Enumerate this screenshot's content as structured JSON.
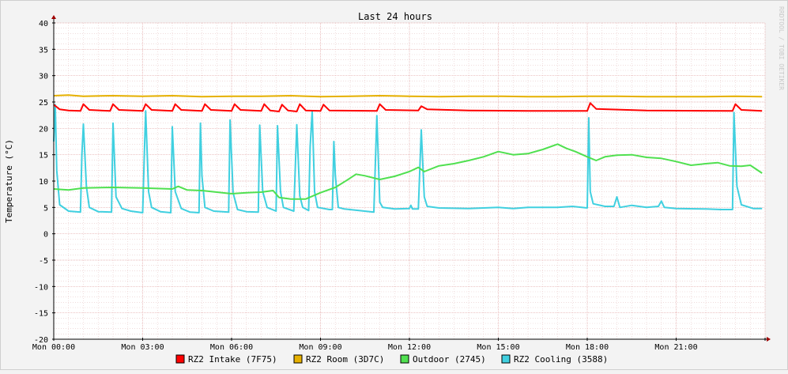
{
  "chart_data": {
    "type": "line",
    "title": "Last 24 hours",
    "ylabel": "Temperature (°C)",
    "watermark": "RRDTOOL / TOBI OETIKER",
    "ylim": [
      -20,
      40
    ],
    "yticks": [
      "40",
      "35",
      "30",
      "25",
      "20",
      "15",
      "10",
      "5",
      "0",
      "-5",
      "-10",
      "-15",
      "-20"
    ],
    "x_range_hours": [
      0,
      24
    ],
    "xticks": [
      "Mon 00:00",
      "Mon 03:00",
      "Mon 06:00",
      "Mon 09:00",
      "Mon 12:00",
      "Mon 15:00",
      "Mon 18:00",
      "Mon 21:00"
    ],
    "grid": true,
    "legend_position": "bottom",
    "series": [
      {
        "name": "RZ2 Intake (7F75)",
        "color": "#ff0000",
        "points": [
          [
            0,
            24.5
          ],
          [
            0.2,
            23.6
          ],
          [
            0.5,
            23.4
          ],
          [
            0.9,
            23.3
          ],
          [
            1.0,
            24.6
          ],
          [
            1.2,
            23.5
          ],
          [
            1.9,
            23.3
          ],
          [
            2.0,
            24.6
          ],
          [
            2.2,
            23.5
          ],
          [
            3.0,
            23.3
          ],
          [
            3.1,
            24.6
          ],
          [
            3.3,
            23.5
          ],
          [
            4.0,
            23.3
          ],
          [
            4.1,
            24.6
          ],
          [
            4.3,
            23.5
          ],
          [
            5.0,
            23.3
          ],
          [
            5.1,
            24.6
          ],
          [
            5.3,
            23.5
          ],
          [
            6.0,
            23.3
          ],
          [
            6.1,
            24.6
          ],
          [
            6.3,
            23.5
          ],
          [
            7.0,
            23.3
          ],
          [
            7.1,
            24.6
          ],
          [
            7.3,
            23.4
          ],
          [
            7.6,
            23.2
          ],
          [
            7.7,
            24.5
          ],
          [
            7.9,
            23.4
          ],
          [
            8.2,
            23.2
          ],
          [
            8.3,
            24.6
          ],
          [
            8.5,
            23.4
          ],
          [
            9.0,
            23.3
          ],
          [
            9.1,
            24.5
          ],
          [
            9.3,
            23.4
          ],
          [
            10.9,
            23.3
          ],
          [
            11.0,
            24.6
          ],
          [
            11.2,
            23.5
          ],
          [
            12.3,
            23.4
          ],
          [
            12.4,
            24.2
          ],
          [
            12.6,
            23.6
          ],
          [
            14.0,
            23.4
          ],
          [
            16.0,
            23.3
          ],
          [
            18.0,
            23.3
          ],
          [
            18.1,
            24.8
          ],
          [
            18.3,
            23.7
          ],
          [
            20.0,
            23.4
          ],
          [
            22.9,
            23.3
          ],
          [
            23.0,
            24.6
          ],
          [
            23.2,
            23.5
          ],
          [
            23.9,
            23.3
          ]
        ]
      },
      {
        "name": "RZ2 Room (3D7C)",
        "color": "#e6b000",
        "points": [
          [
            0,
            26.2
          ],
          [
            0.5,
            26.3
          ],
          [
            1.0,
            26.1
          ],
          [
            2.0,
            26.2
          ],
          [
            3.0,
            26.1
          ],
          [
            4.0,
            26.2
          ],
          [
            5.0,
            26.0
          ],
          [
            6.0,
            26.1
          ],
          [
            7.0,
            26.1
          ],
          [
            8.0,
            26.2
          ],
          [
            9.0,
            26.0
          ],
          [
            10.0,
            26.1
          ],
          [
            11.0,
            26.2
          ],
          [
            12.0,
            26.1
          ],
          [
            13.0,
            26.0
          ],
          [
            14.0,
            26.1
          ],
          [
            15.0,
            26.1
          ],
          [
            16.0,
            26.0
          ],
          [
            17.0,
            26.0
          ],
          [
            18.0,
            26.1
          ],
          [
            19.0,
            26.1
          ],
          [
            20.0,
            26.0
          ],
          [
            21.0,
            26.0
          ],
          [
            22.0,
            26.0
          ],
          [
            23.0,
            26.1
          ],
          [
            23.9,
            26.0
          ]
        ]
      },
      {
        "name": "Outdoor (2745)",
        "color": "#50e050",
        "points": [
          [
            0,
            8.5
          ],
          [
            0.5,
            8.3
          ],
          [
            1.0,
            8.7
          ],
          [
            2.0,
            8.8
          ],
          [
            3.0,
            8.7
          ],
          [
            4.0,
            8.5
          ],
          [
            4.2,
            9.0
          ],
          [
            4.5,
            8.3
          ],
          [
            5.0,
            8.2
          ],
          [
            5.5,
            7.9
          ],
          [
            6.0,
            7.6
          ],
          [
            6.5,
            7.8
          ],
          [
            7.0,
            7.9
          ],
          [
            7.4,
            8.2
          ],
          [
            7.6,
            6.9
          ],
          [
            8.0,
            6.6
          ],
          [
            8.5,
            6.6
          ],
          [
            9.0,
            7.8
          ],
          [
            9.5,
            8.8
          ],
          [
            9.9,
            10.2
          ],
          [
            10.2,
            11.3
          ],
          [
            10.5,
            11.0
          ],
          [
            11.0,
            10.3
          ],
          [
            11.5,
            10.9
          ],
          [
            12.0,
            11.8
          ],
          [
            12.3,
            12.6
          ],
          [
            12.5,
            11.8
          ],
          [
            13.0,
            12.9
          ],
          [
            13.5,
            13.3
          ],
          [
            14.0,
            13.9
          ],
          [
            14.5,
            14.6
          ],
          [
            15.0,
            15.6
          ],
          [
            15.5,
            15.0
          ],
          [
            16.0,
            15.2
          ],
          [
            16.5,
            16.0
          ],
          [
            17.0,
            17.0
          ],
          [
            17.3,
            16.2
          ],
          [
            17.6,
            15.6
          ],
          [
            18.0,
            14.6
          ],
          [
            18.3,
            13.9
          ],
          [
            18.6,
            14.6
          ],
          [
            19.0,
            14.9
          ],
          [
            19.5,
            15.0
          ],
          [
            20.0,
            14.5
          ],
          [
            20.5,
            14.3
          ],
          [
            21.0,
            13.7
          ],
          [
            21.5,
            13.0
          ],
          [
            22.0,
            13.3
          ],
          [
            22.4,
            13.5
          ],
          [
            22.8,
            12.9
          ],
          [
            23.2,
            12.8
          ],
          [
            23.5,
            13.0
          ],
          [
            23.9,
            11.5
          ]
        ]
      },
      {
        "name": "RZ2 Cooling (3588)",
        "color": "#40d0e0",
        "points": [
          [
            0,
            17.5
          ],
          [
            0.05,
            24.5
          ],
          [
            0.1,
            12.0
          ],
          [
            0.2,
            5.5
          ],
          [
            0.5,
            4.3
          ],
          [
            0.9,
            4.1
          ],
          [
            0.95,
            15.0
          ],
          [
            1.0,
            20.8
          ],
          [
            1.1,
            9.0
          ],
          [
            1.2,
            5.0
          ],
          [
            1.5,
            4.2
          ],
          [
            1.95,
            4.1
          ],
          [
            2.0,
            21.0
          ],
          [
            2.1,
            7.0
          ],
          [
            2.3,
            4.8
          ],
          [
            2.6,
            4.3
          ],
          [
            3.0,
            4.0
          ],
          [
            3.05,
            14.0
          ],
          [
            3.1,
            23.3
          ],
          [
            3.2,
            8.0
          ],
          [
            3.3,
            5.0
          ],
          [
            3.6,
            4.2
          ],
          [
            3.95,
            4.0
          ],
          [
            4.0,
            20.3
          ],
          [
            4.1,
            8.0
          ],
          [
            4.3,
            4.8
          ],
          [
            4.6,
            4.1
          ],
          [
            4.9,
            4.0
          ],
          [
            4.95,
            21.0
          ],
          [
            5.0,
            11.0
          ],
          [
            5.1,
            5.0
          ],
          [
            5.4,
            4.3
          ],
          [
            5.9,
            4.1
          ],
          [
            5.95,
            21.6
          ],
          [
            6.05,
            7.8
          ],
          [
            6.2,
            4.6
          ],
          [
            6.5,
            4.2
          ],
          [
            6.9,
            4.1
          ],
          [
            6.95,
            20.6
          ],
          [
            7.05,
            8.0
          ],
          [
            7.2,
            5.0
          ],
          [
            7.5,
            4.3
          ],
          [
            7.55,
            20.5
          ],
          [
            7.65,
            8.0
          ],
          [
            7.75,
            5.0
          ],
          [
            8.1,
            4.3
          ],
          [
            8.2,
            20.7
          ],
          [
            8.3,
            7.2
          ],
          [
            8.4,
            5.0
          ],
          [
            8.6,
            4.4
          ],
          [
            8.65,
            16.5
          ],
          [
            8.72,
            23.3
          ],
          [
            8.8,
            8.0
          ],
          [
            8.9,
            5.0
          ],
          [
            9.3,
            4.6
          ],
          [
            9.4,
            4.6
          ],
          [
            9.45,
            17.5
          ],
          [
            9.5,
            11.0
          ],
          [
            9.6,
            5.0
          ],
          [
            9.8,
            4.7
          ],
          [
            10.3,
            4.4
          ],
          [
            10.8,
            4.1
          ],
          [
            10.9,
            22.4
          ],
          [
            11.0,
            6.0
          ],
          [
            11.1,
            5.0
          ],
          [
            11.5,
            4.7
          ],
          [
            12.0,
            4.8
          ],
          [
            12.05,
            5.4
          ],
          [
            12.1,
            4.7
          ],
          [
            12.3,
            4.7
          ],
          [
            12.4,
            19.7
          ],
          [
            12.5,
            7.0
          ],
          [
            12.6,
            5.2
          ],
          [
            13.0,
            4.9
          ],
          [
            14.0,
            4.8
          ],
          [
            15.0,
            5.0
          ],
          [
            15.5,
            4.8
          ],
          [
            16.0,
            5.0
          ],
          [
            17.0,
            5.0
          ],
          [
            17.5,
            5.2
          ],
          [
            18.0,
            4.9
          ],
          [
            18.05,
            22.0
          ],
          [
            18.1,
            8.0
          ],
          [
            18.2,
            5.7
          ],
          [
            18.6,
            5.2
          ],
          [
            18.9,
            5.2
          ],
          [
            19.0,
            7.0
          ],
          [
            19.1,
            5.0
          ],
          [
            19.5,
            5.4
          ],
          [
            20.0,
            5.0
          ],
          [
            20.4,
            5.2
          ],
          [
            20.5,
            6.2
          ],
          [
            20.6,
            5.0
          ],
          [
            21.0,
            4.8
          ],
          [
            22.0,
            4.7
          ],
          [
            22.5,
            4.6
          ],
          [
            22.9,
            4.6
          ],
          [
            22.95,
            23.0
          ],
          [
            23.05,
            9.0
          ],
          [
            23.2,
            5.5
          ],
          [
            23.6,
            4.8
          ],
          [
            23.9,
            4.8
          ]
        ]
      }
    ]
  }
}
